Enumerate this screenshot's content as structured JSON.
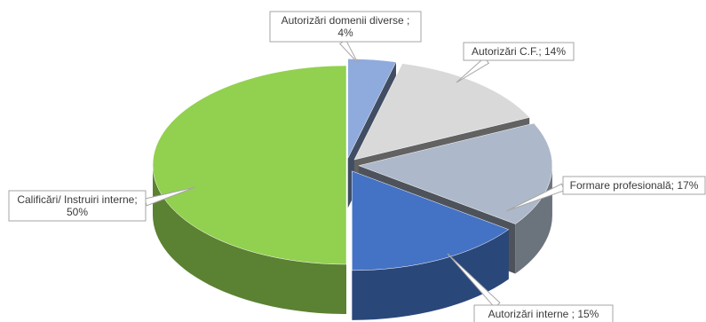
{
  "chart_data": {
    "type": "pie",
    "style": "3d exploded",
    "title": "",
    "slices": [
      {
        "name": "Autorizări domenii diverse",
        "value": 4,
        "label_lines": [
          "Autorizări domenii diverse ;",
          "4%"
        ],
        "color": "#8faadc"
      },
      {
        "name": "Autorizări C.F.",
        "value": 14,
        "label_lines": [
          "Autorizări C.F.; 14%"
        ],
        "color": "#d9d9d9"
      },
      {
        "name": "Formare profesională",
        "value": 17,
        "label_lines": [
          "Formare profesională; 17%"
        ],
        "color": "#adb9ca"
      },
      {
        "name": "Autorizări interne",
        "value": 15,
        "label_lines": [
          "Autorizări interne ; 15%"
        ],
        "color": "#4472c4"
      },
      {
        "name": "Calificări/ Instruiri interne",
        "value": 50,
        "label_lines": [
          "Calificări/ Instruiri interne;",
          "50%"
        ],
        "color": "#92d050"
      }
    ],
    "legend": "none"
  }
}
